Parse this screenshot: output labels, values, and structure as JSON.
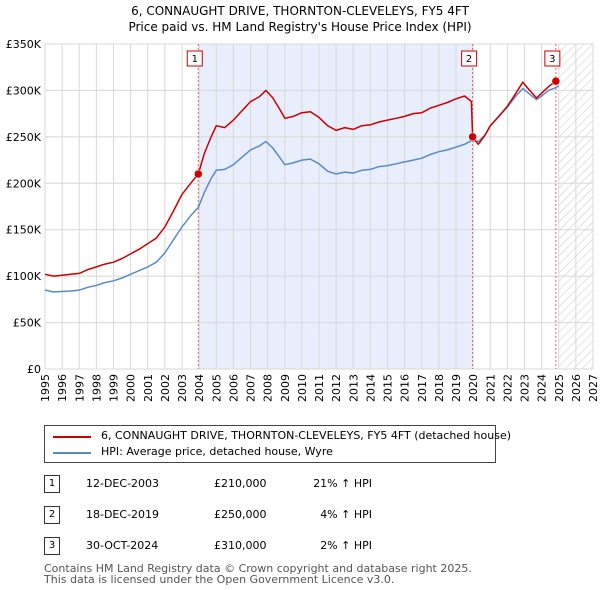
{
  "title_line1": "6, CONNAUGHT DRIVE, THORNTON-CLEVELEYS, FY5 4FT",
  "title_line2": "Price paid vs. HM Land Registry's House Price Index (HPI)",
  "colors": {
    "property": "#cc0000",
    "hpi": "#5a8ac6",
    "shade": "#e8eefb",
    "marker_line": "#e06666"
  },
  "chart_data": {
    "type": "line",
    "xlim": [
      1995,
      2027
    ],
    "ylim": [
      0,
      350000
    ],
    "x_ticks": [
      1995,
      1996,
      1997,
      1998,
      1999,
      2000,
      2001,
      2002,
      2003,
      2004,
      2005,
      2006,
      2007,
      2008,
      2009,
      2010,
      2011,
      2012,
      2013,
      2014,
      2015,
      2016,
      2017,
      2018,
      2019,
      2020,
      2021,
      2022,
      2023,
      2024,
      2025,
      2026,
      2027
    ],
    "y_ticks": [
      {
        "value": 0,
        "label": "£0"
      },
      {
        "value": 50000,
        "label": "£50K"
      },
      {
        "value": 100000,
        "label": "£100K"
      },
      {
        "value": 150000,
        "label": "£150K"
      },
      {
        "value": 200000,
        "label": "£200K"
      },
      {
        "value": 250000,
        "label": "£250K"
      },
      {
        "value": 300000,
        "label": "£300K"
      },
      {
        "value": 350000,
        "label": "£350K"
      }
    ],
    "grid": true,
    "series": [
      {
        "name": "6, CONNAUGHT DRIVE, THORNTON-CLEVELEYS, FY5 4FT (detached house)",
        "color": "#cc0000",
        "x": [
          1995.0,
          1995.5,
          1996.0,
          1996.5,
          1997.0,
          1997.5,
          1998.0,
          1998.5,
          1999.0,
          1999.5,
          2000.0,
          2000.5,
          2001.0,
          2001.5,
          2002.0,
          2002.5,
          2003.0,
          2003.5,
          2003.95,
          2004.3,
          2004.7,
          2005.0,
          2005.5,
          2006.0,
          2006.5,
          2007.0,
          2007.5,
          2007.9,
          2008.3,
          2008.7,
          2009.0,
          2009.5,
          2010.0,
          2010.5,
          2011.0,
          2011.5,
          2012.0,
          2012.5,
          2013.0,
          2013.5,
          2014.0,
          2014.5,
          2015.0,
          2015.5,
          2016.0,
          2016.5,
          2017.0,
          2017.5,
          2018.0,
          2018.5,
          2019.0,
          2019.5,
          2019.9,
          2019.97,
          2020.3,
          2020.7,
          2021.0,
          2021.5,
          2022.0,
          2022.5,
          2022.9,
          2023.3,
          2023.7,
          2024.0,
          2024.4,
          2024.83,
          2025.0
        ],
        "y": [
          102000,
          100000,
          101000,
          102000,
          103000,
          107000,
          110000,
          113000,
          115000,
          119000,
          124000,
          129000,
          135000,
          141000,
          153000,
          170000,
          188000,
          200000,
          210000,
          232000,
          250000,
          262000,
          260000,
          268000,
          278000,
          288000,
          293000,
          300000,
          292000,
          280000,
          270000,
          272000,
          276000,
          277000,
          271000,
          262000,
          257000,
          260000,
          258000,
          262000,
          263000,
          266000,
          268000,
          270000,
          272000,
          275000,
          276000,
          281000,
          284000,
          287000,
          291000,
          294000,
          288000,
          250000,
          242000,
          252000,
          262000,
          272000,
          283000,
          297000,
          309000,
          300000,
          292000,
          297000,
          304000,
          310000,
          312000
        ]
      },
      {
        "name": "HPI: Average price, detached house, Wyre",
        "color": "#5a8ac6",
        "x": [
          1995.0,
          1995.5,
          1996.0,
          1996.5,
          1997.0,
          1997.5,
          1998.0,
          1998.5,
          1999.0,
          1999.5,
          2000.0,
          2000.5,
          2001.0,
          2001.5,
          2002.0,
          2002.5,
          2003.0,
          2003.5,
          2003.95,
          2004.3,
          2004.7,
          2005.0,
          2005.5,
          2006.0,
          2006.5,
          2007.0,
          2007.5,
          2007.9,
          2008.3,
          2008.7,
          2009.0,
          2009.5,
          2010.0,
          2010.5,
          2011.0,
          2011.5,
          2012.0,
          2012.5,
          2013.0,
          2013.5,
          2014.0,
          2014.5,
          2015.0,
          2015.5,
          2016.0,
          2016.5,
          2017.0,
          2017.5,
          2018.0,
          2018.5,
          2019.0,
          2019.5,
          2019.9,
          2020.3,
          2020.7,
          2021.0,
          2021.5,
          2022.0,
          2022.5,
          2022.9,
          2023.3,
          2023.7,
          2024.0,
          2024.4,
          2024.83,
          2025.0
        ],
        "y": [
          85000,
          83000,
          83500,
          84000,
          85000,
          88000,
          90000,
          93000,
          95000,
          98000,
          102000,
          106000,
          110000,
          115000,
          125000,
          139000,
          153000,
          165000,
          174000,
          190000,
          205000,
          214000,
          215000,
          220000,
          228000,
          236000,
          240000,
          245000,
          238000,
          228000,
          220000,
          222000,
          225000,
          226000,
          221000,
          213000,
          210000,
          212000,
          211000,
          214000,
          215000,
          218000,
          219000,
          221000,
          223000,
          225000,
          227000,
          231000,
          234000,
          236000,
          239000,
          242000,
          246000,
          245000,
          252000,
          262000,
          272000,
          282000,
          294000,
          302000,
          296000,
          290000,
          294000,
          300000,
          303000,
          305000
        ]
      }
    ],
    "sales": [
      {
        "label": "1",
        "x": 2003.95,
        "y": 210000
      },
      {
        "label": "2",
        "x": 2019.97,
        "y": 250000
      },
      {
        "label": "3",
        "x": 2024.83,
        "y": 310000
      }
    ],
    "shaded_range": [
      2003.95,
      2019.97
    ],
    "future_hatch_from": 2025.0
  },
  "legend": {
    "property_label": "6, CONNAUGHT DRIVE, THORNTON-CLEVELEYS, FY5 4FT (detached house)",
    "hpi_label": "HPI: Average price, detached house, Wyre"
  },
  "table": [
    {
      "num": "1",
      "date": "12-DEC-2003",
      "price": "£210,000",
      "hpi": "21% ↑ HPI"
    },
    {
      "num": "2",
      "date": "18-DEC-2019",
      "price": "£250,000",
      "hpi": "4% ↑ HPI"
    },
    {
      "num": "3",
      "date": "30-OCT-2024",
      "price": "£310,000",
      "hpi": "2% ↑ HPI"
    }
  ],
  "footer_line1": "Contains HM Land Registry data © Crown copyright and database right 2025.",
  "footer_line2": "This data is licensed under the Open Government Licence v3.0."
}
